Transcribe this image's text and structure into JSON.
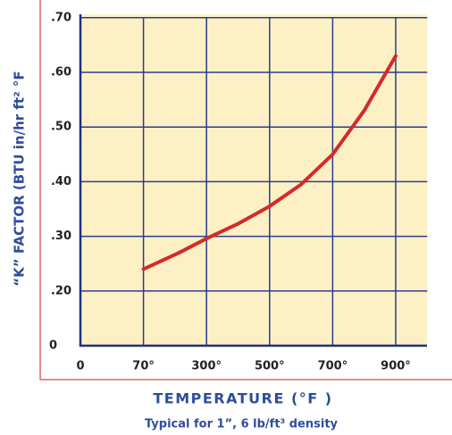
{
  "chart_data": {
    "type": "line",
    "y_label": "“K” FACTOR (BTU in/hr ft² °F",
    "x_label": "TEMPERATURE (°F )",
    "subtitle": "Typical for 1”, 6 lb/ft³ density",
    "x": [
      70,
      200,
      300,
      400,
      500,
      600,
      700,
      800,
      900
    ],
    "series": [
      {
        "color": "#d42a2a",
        "values": [
          0.24,
          0.27,
          0.296,
          0.323,
          0.355,
          0.395,
          0.45,
          0.53,
          0.63
        ]
      }
    ],
    "xlim": [
      0,
      1000
    ],
    "xticks": [
      0,
      {
        "value": 70,
        "label": "70°"
      },
      {
        "value": 300,
        "label": "300°"
      },
      {
        "value": 500,
        "label": "500°"
      },
      {
        "value": 700,
        "label": "700°"
      },
      {
        "value": 900,
        "label": "900°"
      }
    ],
    "ylim": [
      0,
      0.7
    ],
    "yticks": [
      0,
      {
        "value": 0.2,
        "label": ".20"
      },
      {
        "value": 0.3,
        "label": ".30"
      },
      {
        "value": 0.4,
        "label": ".40"
      },
      {
        "value": 0.5,
        "label": ".50"
      },
      {
        "value": 0.6,
        "label": ".60"
      },
      {
        "value": 0.7,
        "label": ".70"
      }
    ],
    "grid": true
  }
}
